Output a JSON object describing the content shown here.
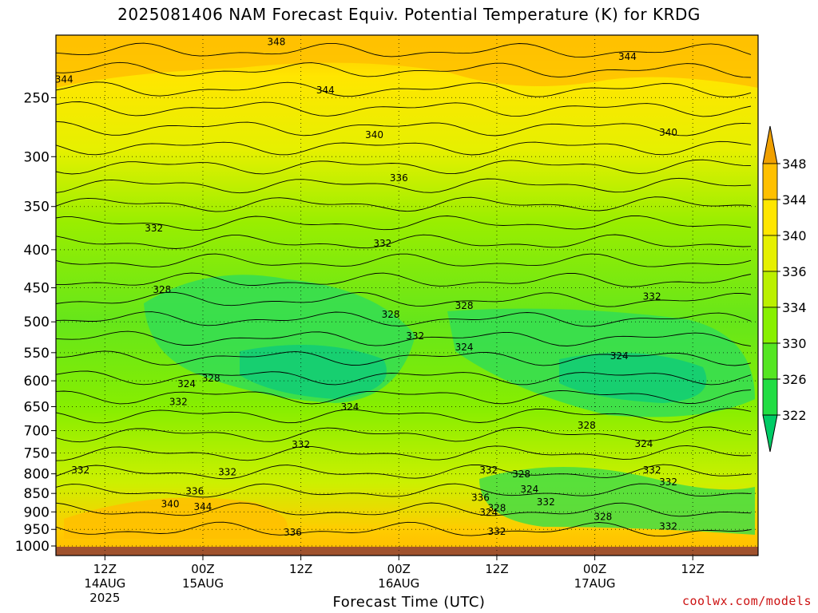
{
  "title": "2025081406 NAM Forecast Equiv. Potential Temperature (K) for KRDG",
  "credit": "coolwx.com/models",
  "chart_data": {
    "type": "heatmap",
    "title": "2025081406 NAM Forecast Equiv. Potential Temperature (K) for KRDG",
    "xlabel": "Forecast Time (UTC)",
    "ylabel": "",
    "y_scale": "log-pressure (inverted)",
    "ylim": [
      1030,
      206
    ],
    "y_ticks": [
      1000,
      950,
      900,
      850,
      800,
      750,
      700,
      650,
      600,
      550,
      500,
      450,
      400,
      350,
      300,
      250
    ],
    "x_range_hours_utc": [
      "2025-08-14 06Z",
      "2025-08-17 20Z"
    ],
    "x_ticks": [
      {
        "time": "2025-08-14 12Z",
        "label": "12Z",
        "sublabel": "14AUG",
        "sublabel2": "2025"
      },
      {
        "time": "2025-08-15 00Z",
        "label": "00Z",
        "sublabel": "15AUG"
      },
      {
        "time": "2025-08-15 12Z",
        "label": "12Z"
      },
      {
        "time": "2025-08-16 00Z",
        "label": "00Z",
        "sublabel": "16AUG"
      },
      {
        "time": "2025-08-16 12Z",
        "label": "12Z"
      },
      {
        "time": "2025-08-17 00Z",
        "label": "00Z",
        "sublabel": "17AUG"
      },
      {
        "time": "2025-08-17 12Z",
        "label": "12Z"
      }
    ],
    "grid": true,
    "colorbar": {
      "levels": [
        322,
        326,
        330,
        334,
        336,
        340,
        344,
        348
      ],
      "colors": [
        "#00cc66",
        "#22dd44",
        "#55e622",
        "#88f000",
        "#bbf000",
        "#e6f000",
        "#ffe600",
        "#ffc000",
        "#f0a000"
      ]
    },
    "contour_interval": 2,
    "contour_labels": [
      {
        "value": 348,
        "time": "2025-08-15 09Z",
        "pressure": 210
      },
      {
        "value": 344,
        "time": "2025-08-14 07Z",
        "pressure": 236
      },
      {
        "value": 344,
        "time": "2025-08-15 15Z",
        "pressure": 244
      },
      {
        "value": 344,
        "time": "2025-08-17 04Z",
        "pressure": 220
      },
      {
        "value": 340,
        "time": "2025-08-15 21Z",
        "pressure": 280
      },
      {
        "value": 340,
        "time": "2025-08-17 09Z",
        "pressure": 278
      },
      {
        "value": 336,
        "time": "2025-08-16 00Z",
        "pressure": 320
      },
      {
        "value": 332,
        "time": "2025-08-14 18Z",
        "pressure": 374
      },
      {
        "value": 332,
        "time": "2025-08-15 22Z",
        "pressure": 392
      },
      {
        "value": 332,
        "time": "2025-08-16 02Z",
        "pressure": 522
      },
      {
        "value": 332,
        "time": "2025-08-17 07Z",
        "pressure": 462
      },
      {
        "value": 332,
        "time": "2025-08-14 21Z",
        "pressure": 640
      },
      {
        "value": 332,
        "time": "2025-08-15 12Z",
        "pressure": 730
      },
      {
        "value": 332,
        "time": "2025-08-14 09Z",
        "pressure": 790
      },
      {
        "value": 332,
        "time": "2025-08-15 03Z",
        "pressure": 795
      },
      {
        "value": 332,
        "time": "2025-08-16 11Z",
        "pressure": 790
      },
      {
        "value": 332,
        "time": "2025-08-17 07Z",
        "pressure": 790
      },
      {
        "value": 332,
        "time": "2025-08-17 09Z",
        "pressure": 820
      },
      {
        "value": 332,
        "time": "2025-08-16 18Z",
        "pressure": 872
      },
      {
        "value": 332,
        "time": "2025-08-17 09Z",
        "pressure": 940
      },
      {
        "value": 332,
        "time": "2025-08-16 12Z",
        "pressure": 955
      },
      {
        "value": 328,
        "time": "2025-08-14 19Z",
        "pressure": 452
      },
      {
        "value": 328,
        "time": "2025-08-15 23Z",
        "pressure": 488
      },
      {
        "value": 328,
        "time": "2025-08-16 08Z",
        "pressure": 475
      },
      {
        "value": 328,
        "time": "2025-08-15 01Z",
        "pressure": 595
      },
      {
        "value": 328,
        "time": "2025-08-16 23Z",
        "pressure": 688
      },
      {
        "value": 328,
        "time": "2025-08-16 15Z",
        "pressure": 800
      },
      {
        "value": 328,
        "time": "2025-08-16 12Z",
        "pressure": 888
      },
      {
        "value": 328,
        "time": "2025-08-17 01Z",
        "pressure": 913
      },
      {
        "value": 324,
        "time": "2025-08-14 22Z",
        "pressure": 605
      },
      {
        "value": 324,
        "time": "2025-08-16 08Z",
        "pressure": 540
      },
      {
        "value": 324,
        "time": "2025-08-17 03Z",
        "pressure": 555
      },
      {
        "value": 324,
        "time": "2025-08-15 18Z",
        "pressure": 650
      },
      {
        "value": 324,
        "time": "2025-08-17 06Z",
        "pressure": 728
      },
      {
        "value": 324,
        "time": "2025-08-16 16Z",
        "pressure": 838
      },
      {
        "value": 324,
        "time": "2025-08-16 11Z",
        "pressure": 900
      },
      {
        "value": 336,
        "time": "2025-08-14 23Z",
        "pressure": 843
      },
      {
        "value": 336,
        "time": "2025-08-16 10Z",
        "pressure": 860
      },
      {
        "value": 336,
        "time": "2025-08-15 11Z",
        "pressure": 958
      },
      {
        "value": 340,
        "time": "2025-08-14 20Z",
        "pressure": 877
      },
      {
        "value": 344,
        "time": "2025-08-15 00Z",
        "pressure": 885
      }
    ]
  }
}
